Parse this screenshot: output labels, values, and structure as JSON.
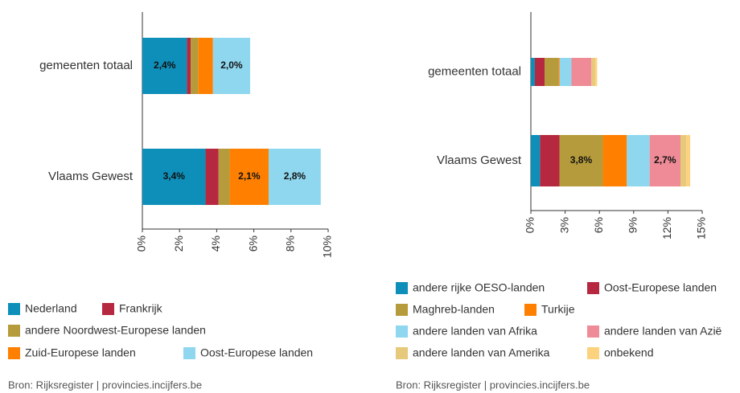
{
  "chart_data": [
    {
      "type": "bar",
      "orientation": "horizontal",
      "stacked": true,
      "categories": [
        "gemeenten totaal",
        "Vlaams Gewest"
      ],
      "series": [
        {
          "name": "Nederland",
          "color": "#0e8fb9",
          "values": [
            2.4,
            3.4
          ],
          "value_labels": [
            "2,4%",
            "3,4%"
          ]
        },
        {
          "name": "Frankrijk",
          "color": "#b5283f",
          "values": [
            0.2,
            0.7
          ]
        },
        {
          "name": "andere Noordwest-Europese landen",
          "color": "#b59b3c",
          "values": [
            0.4,
            0.6
          ]
        },
        {
          "name": "Zuid-Europese landen",
          "color": "#ff8000",
          "values": [
            0.8,
            2.1
          ],
          "value_labels": [
            null,
            "2,1%"
          ]
        },
        {
          "name": "Oost-Europese landen",
          "color": "#8fd7ef",
          "values": [
            2.0,
            2.8
          ],
          "value_labels": [
            "2,0%",
            "2,8%"
          ]
        }
      ],
      "xlim": [
        0,
        10
      ],
      "xticks": [
        {
          "value": 0,
          "label": "0%"
        },
        {
          "value": 2,
          "label": "2%"
        },
        {
          "value": 4,
          "label": "4%"
        },
        {
          "value": 6,
          "label": "6%"
        },
        {
          "value": 8,
          "label": "8%"
        },
        {
          "value": 10,
          "label": "10%"
        }
      ],
      "source": "Bron: Rijksregister | provincies.incijfers.be"
    },
    {
      "type": "bar",
      "orientation": "horizontal",
      "stacked": true,
      "categories": [
        "gemeenten totaal",
        "Vlaams Gewest"
      ],
      "series": [
        {
          "name": "andere rijke OESO-landen",
          "color": "#0e8fb9",
          "values": [
            0.35,
            0.8
          ]
        },
        {
          "name": "Oost-Europese landen",
          "color": "#b5283f",
          "values": [
            0.85,
            1.7
          ]
        },
        {
          "name": "Maghreb-landen",
          "color": "#b59b3c",
          "values": [
            1.2,
            3.8
          ],
          "value_labels": [
            null,
            "3,8%"
          ]
        },
        {
          "name": "Turkije",
          "color": "#ff8000",
          "values": [
            0.1,
            2.1
          ]
        },
        {
          "name": "andere landen van Afrika",
          "color": "#8fd7ef",
          "values": [
            1.05,
            2.0
          ]
        },
        {
          "name": "andere landen van Azië",
          "color": "#ee8b97",
          "values": [
            1.75,
            2.7
          ],
          "value_labels": [
            null,
            "2,7%"
          ]
        },
        {
          "name": "andere landen van Amerika",
          "color": "#e6c97a",
          "values": [
            0.3,
            0.5
          ]
        },
        {
          "name": "onbekend",
          "color": "#fcd27f",
          "values": [
            0.2,
            0.35
          ]
        }
      ],
      "xlim": [
        0,
        15
      ],
      "xticks": [
        {
          "value": 0,
          "label": "0%"
        },
        {
          "value": 3,
          "label": "3%"
        },
        {
          "value": 6,
          "label": "6%"
        },
        {
          "value": 9,
          "label": "9%"
        },
        {
          "value": 12,
          "label": "12%"
        },
        {
          "value": 15,
          "label": "15%"
        }
      ],
      "source": "Bron: Rijksregister | provincies.incijfers.be"
    }
  ]
}
